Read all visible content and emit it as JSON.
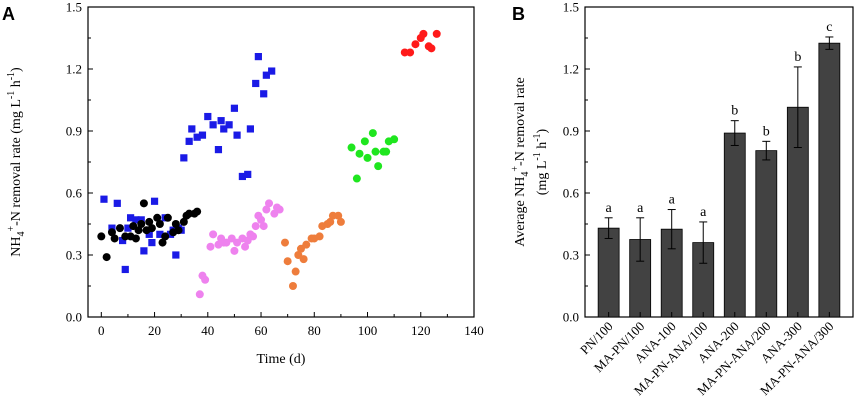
{
  "chart_data": [
    {
      "panel": "A",
      "type": "scatter",
      "xlabel": "Time (d)",
      "ylabel": {
        "base": "NH",
        "sub": "4",
        "sup": "+",
        "rest": "-N removal rate (mg L",
        "sup2": "-1",
        "mid": " h",
        "sup3": "-1",
        "end": ")"
      },
      "xlim": [
        -5,
        140
      ],
      "ylim": [
        0.0,
        1.5
      ],
      "xticks": [
        0,
        20,
        40,
        60,
        80,
        100,
        120,
        140
      ],
      "xtick_labels": [
        "0",
        "20",
        "40",
        "60",
        "80",
        "100",
        "120",
        "140"
      ],
      "yticks": [
        0.0,
        0.3,
        0.6,
        0.9,
        1.2,
        1.5
      ],
      "ytick_labels": [
        "0.0",
        "0.3",
        "0.6",
        "0.9",
        "1.2",
        "1.5"
      ],
      "series": [
        {
          "name": "blue squares",
          "marker": "square",
          "color": "#1a1ae6",
          "points": [
            [
              1,
              0.57
            ],
            [
              4,
              0.43
            ],
            [
              6,
              0.55
            ],
            [
              8,
              0.37
            ],
            [
              9,
              0.23
            ],
            [
              10,
              0.43
            ],
            [
              11,
              0.48
            ],
            [
              13,
              0.47
            ],
            [
              15,
              0.47
            ],
            [
              16,
              0.32
            ],
            [
              18,
              0.4
            ],
            [
              19,
              0.36
            ],
            [
              20,
              0.56
            ],
            [
              22,
              0.4
            ],
            [
              24,
              0.48
            ],
            [
              26,
              0.4
            ],
            [
              27,
              0.42
            ],
            [
              28,
              0.3
            ],
            [
              29,
              0.43
            ],
            [
              30,
              0.42
            ],
            [
              31,
              0.77
            ],
            [
              33,
              0.85
            ],
            [
              34,
              0.91
            ],
            [
              36,
              0.87
            ],
            [
              38,
              0.88
            ],
            [
              40,
              0.97
            ],
            [
              42,
              0.93
            ],
            [
              44,
              0.81
            ],
            [
              45,
              0.95
            ],
            [
              46,
              0.91
            ],
            [
              48,
              0.93
            ],
            [
              50,
              1.01
            ],
            [
              51,
              0.88
            ],
            [
              53,
              0.68
            ],
            [
              55,
              0.69
            ],
            [
              56,
              0.91
            ],
            [
              58,
              1.13
            ],
            [
              59,
              1.26
            ],
            [
              61,
              1.08
            ],
            [
              62,
              1.17
            ],
            [
              64,
              1.19
            ]
          ]
        },
        {
          "name": "black circles",
          "marker": "circle",
          "color": "#000000",
          "points": [
            [
              0,
              0.39
            ],
            [
              2,
              0.29
            ],
            [
              4,
              0.41
            ],
            [
              5,
              0.38
            ],
            [
              7,
              0.43
            ],
            [
              9,
              0.39
            ],
            [
              11,
              0.39
            ],
            [
              12,
              0.44
            ],
            [
              13,
              0.38
            ],
            [
              14,
              0.42
            ],
            [
              15,
              0.45
            ],
            [
              16,
              0.55
            ],
            [
              17,
              0.42
            ],
            [
              18,
              0.46
            ],
            [
              19,
              0.43
            ],
            [
              21,
              0.48
            ],
            [
              22,
              0.45
            ],
            [
              23,
              0.36
            ],
            [
              24,
              0.39
            ],
            [
              25,
              0.48
            ],
            [
              27,
              0.41
            ],
            [
              28,
              0.45
            ],
            [
              29,
              0.42
            ],
            [
              31,
              0.46
            ],
            [
              32,
              0.49
            ],
            [
              33,
              0.5
            ],
            [
              35,
              0.5
            ],
            [
              36,
              0.51
            ]
          ]
        },
        {
          "name": "pink circles",
          "marker": "circle",
          "color": "#ee82ee",
          "points": [
            [
              37,
              0.11
            ],
            [
              38,
              0.2
            ],
            [
              39,
              0.18
            ],
            [
              41,
              0.34
            ],
            [
              42,
              0.4
            ],
            [
              44,
              0.35
            ],
            [
              45,
              0.38
            ],
            [
              46,
              0.36
            ],
            [
              47,
              0.36
            ],
            [
              49,
              0.38
            ],
            [
              50,
              0.32
            ],
            [
              51,
              0.36
            ],
            [
              53,
              0.38
            ],
            [
              54,
              0.34
            ],
            [
              55,
              0.37
            ],
            [
              56,
              0.4
            ],
            [
              57,
              0.39
            ],
            [
              58,
              0.44
            ],
            [
              59,
              0.49
            ],
            [
              60,
              0.47
            ],
            [
              61,
              0.44
            ],
            [
              62,
              0.52
            ],
            [
              63,
              0.55
            ],
            [
              65,
              0.5
            ],
            [
              66,
              0.53
            ],
            [
              67,
              0.52
            ]
          ]
        },
        {
          "name": "orange circles",
          "marker": "circle",
          "color": "#ee7d3c",
          "points": [
            [
              69,
              0.36
            ],
            [
              70,
              0.27
            ],
            [
              72,
              0.15
            ],
            [
              73,
              0.22
            ],
            [
              74,
              0.3
            ],
            [
              75,
              0.33
            ],
            [
              76,
              0.28
            ],
            [
              77,
              0.35
            ],
            [
              79,
              0.38
            ],
            [
              80,
              0.38
            ],
            [
              82,
              0.39
            ],
            [
              83,
              0.44
            ],
            [
              85,
              0.45
            ],
            [
              86,
              0.46
            ],
            [
              87,
              0.49
            ],
            [
              89,
              0.49
            ],
            [
              90,
              0.46
            ]
          ]
        },
        {
          "name": "green circles",
          "marker": "circle",
          "color": "#1fe61f",
          "points": [
            [
              94,
              0.82
            ],
            [
              96,
              0.67
            ],
            [
              97,
              0.79
            ],
            [
              99,
              0.85
            ],
            [
              100,
              0.77
            ],
            [
              102,
              0.89
            ],
            [
              103,
              0.8
            ],
            [
              104,
              0.73
            ],
            [
              106,
              0.8
            ],
            [
              107,
              0.8
            ],
            [
              108,
              0.85
            ],
            [
              110,
              0.86
            ]
          ]
        },
        {
          "name": "red circles",
          "marker": "circle",
          "color": "#ff1a1a",
          "points": [
            [
              114,
              1.28
            ],
            [
              116,
              1.28
            ],
            [
              118,
              1.32
            ],
            [
              120,
              1.35
            ],
            [
              121,
              1.37
            ],
            [
              123,
              1.31
            ],
            [
              124,
              1.3
            ],
            [
              126,
              1.37
            ]
          ]
        }
      ]
    },
    {
      "panel": "B",
      "type": "bar",
      "ylabel_line1": {
        "base": "Average NH",
        "sub": "4",
        "sup": "+",
        "rest": "-N removal rate"
      },
      "ylabel_line2": {
        "base": "(mg L",
        "sup": "-1",
        "mid": " h",
        "sup2": "-1",
        "end": ")"
      },
      "ylim": [
        0.0,
        1.5
      ],
      "yticks": [
        0.0,
        0.3,
        0.6,
        0.9,
        1.2,
        1.5
      ],
      "ytick_labels": [
        "0.0",
        "0.3",
        "0.6",
        "0.9",
        "1.2",
        "1.5"
      ],
      "bar_color": "#424242",
      "categories": [
        "PN/100",
        "MA-PN/100",
        "ANA-100",
        "MA-PN-ANA/100",
        "ANA-200",
        "MA-PN-ANA/200",
        "ANA-300",
        "MA-PN-ANA/300"
      ],
      "values": [
        0.43,
        0.375,
        0.425,
        0.36,
        0.89,
        0.805,
        1.015,
        1.325
      ],
      "errors": [
        0.05,
        0.105,
        0.095,
        0.1,
        0.06,
        0.045,
        0.195,
        0.03
      ],
      "letters": [
        "a",
        "a",
        "a",
        "a",
        "b",
        "b",
        "b",
        "c"
      ]
    }
  ]
}
